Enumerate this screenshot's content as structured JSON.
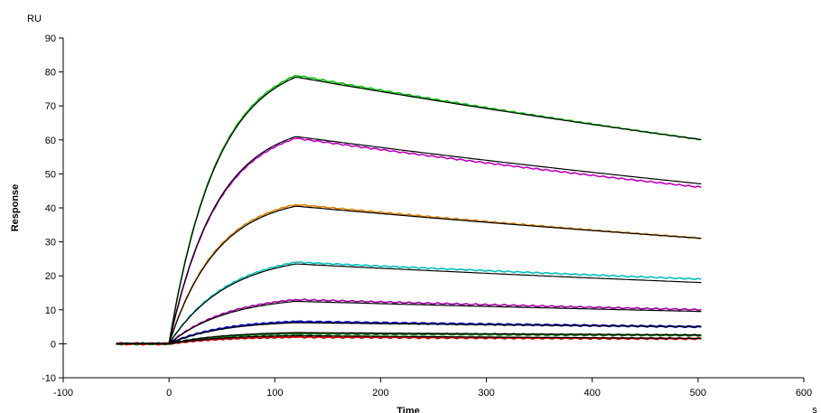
{
  "chart_data": {
    "type": "line",
    "ylabel": "Response",
    "xlabel": "Time",
    "y_unit": "RU",
    "x_unit": "s",
    "xlim": [
      -100,
      600
    ],
    "ylim": [
      -10,
      90
    ],
    "x_ticks": [
      "-100",
      "0",
      "100",
      "200",
      "300",
      "400",
      "500",
      "600"
    ],
    "y_ticks": [
      "-10",
      "0",
      "10",
      "20",
      "30",
      "40",
      "50",
      "60",
      "70",
      "80",
      "90"
    ],
    "grid": false,
    "association_end": 120,
    "series": [
      {
        "color": "#00c000",
        "peak": 79,
        "end": 60
      },
      {
        "color": "#c000c0",
        "peak": 60.5,
        "end": 46
      },
      {
        "color": "#e08000",
        "peak": 41,
        "end": 31
      },
      {
        "color": "#00c0c0",
        "peak": 24,
        "end": 19
      },
      {
        "color": "#a000a0",
        "peak": 13,
        "end": 10
      },
      {
        "color": "#0000c0",
        "peak": 6.5,
        "end": 5
      },
      {
        "color": "#007000",
        "peak": 3,
        "end": 2.5
      },
      {
        "color": "#c00000",
        "peak": 2,
        "end": 1.5
      }
    ],
    "fits": [
      {
        "color": "#000000",
        "peak": 78.5,
        "end": 60
      },
      {
        "color": "#000000",
        "peak": 61,
        "end": 47
      },
      {
        "color": "#000000",
        "peak": 40.5,
        "end": 31
      },
      {
        "color": "#000000",
        "peak": 23.5,
        "end": 18
      },
      {
        "color": "#000000",
        "peak": 12.5,
        "end": 9.5
      },
      {
        "color": "#000000",
        "peak": 6.2,
        "end": 5
      },
      {
        "color": "#000000",
        "peak": 3.3,
        "end": 2.6
      },
      {
        "color": "#000000",
        "peak": 2.4,
        "end": 1.6
      }
    ]
  }
}
